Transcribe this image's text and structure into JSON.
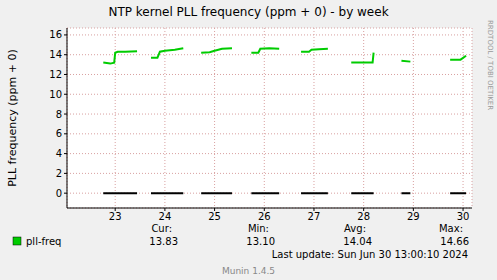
{
  "chart_data": {
    "type": "line",
    "title": "NTP kernel PLL frequency (ppm + 0) - by week",
    "y_label": "PLL frequency (ppm + 0)",
    "side_text": "RRDTOOL / TOBI OETIKER",
    "footer": "Last update: Sun Jun 30 13:00:10 2024",
    "version": "Munin 1.4.5",
    "x": [
      22.76,
      22.9,
      22.98,
      23.0,
      23.05,
      23.2,
      23.44,
      23.58,
      23.72,
      23.85,
      23.9,
      24.0,
      24.2,
      24.37,
      24.55,
      24.73,
      24.9,
      25.0,
      25.15,
      25.35,
      25.55,
      25.74,
      25.88,
      25.92,
      26.1,
      26.3,
      26.52,
      26.74,
      26.9,
      26.95,
      27.1,
      27.28,
      27.5,
      27.75,
      28.0,
      28.18,
      28.2,
      28.5,
      28.76,
      28.94,
      29.3,
      29.74,
      29.95,
      30.06
    ],
    "xlim": [
      22.03,
      30.18
    ],
    "xticks": [
      23,
      24,
      25,
      26,
      27,
      28,
      29,
      30
    ],
    "ylim": [
      -1.5,
      16.7
    ],
    "yticks": [
      0,
      2,
      4,
      6,
      8,
      10,
      12,
      14,
      16
    ],
    "grid": true,
    "series": [
      {
        "name": "pll-freq",
        "color": "#00cc00",
        "values": [
          13.2,
          13.1,
          13.2,
          14.2,
          14.3,
          14.3,
          14.35,
          null,
          13.7,
          13.7,
          14.3,
          14.4,
          14.5,
          14.65,
          null,
          14.2,
          14.25,
          14.4,
          14.6,
          14.65,
          null,
          14.2,
          14.2,
          14.6,
          14.65,
          14.6,
          null,
          14.3,
          14.3,
          14.5,
          14.55,
          14.6,
          null,
          13.2,
          13.2,
          13.2,
          14.2,
          null,
          13.4,
          13.3,
          null,
          13.5,
          13.5,
          13.9
        ],
        "stats": [
          {
            "name": "Cur:",
            "value": 13.83,
            "value_label": "13.83"
          },
          {
            "name": "Min:",
            "value": 13.1,
            "value_label": "13.10"
          },
          {
            "name": "Avg:",
            "value": 14.04,
            "value_label": "14.04"
          },
          {
            "name": "Max:",
            "value": 14.66,
            "value_label": "14.66"
          }
        ]
      },
      {
        "color": "#000000",
        "values": [
          0,
          0,
          0,
          0,
          0,
          0,
          0,
          null,
          0,
          0,
          0,
          0,
          0,
          0,
          null,
          0,
          0,
          0,
          0,
          0,
          null,
          0,
          0,
          0,
          0,
          0,
          null,
          0,
          0,
          0,
          0,
          0,
          null,
          0,
          0,
          0,
          0,
          null,
          0,
          0,
          null,
          0,
          0,
          0
        ]
      }
    ]
  }
}
